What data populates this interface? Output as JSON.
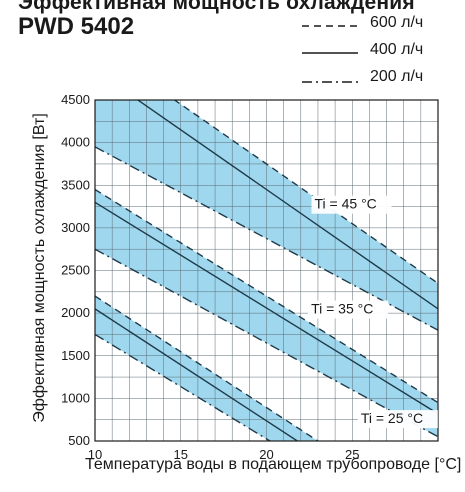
{
  "header": {
    "title": "Эффективная мощность охлаждения",
    "model": "PWD 5402"
  },
  "legend": [
    {
      "label": "600 л/ч",
      "style": "dashed"
    },
    {
      "label": "400 л/ч",
      "style": "solid"
    },
    {
      "label": "200 л/ч",
      "style": "dashdot"
    }
  ],
  "chart_data": {
    "type": "area",
    "xlabel": "Температура воды в подающем трубопроводе [°C]",
    "ylabel": "Эффективная мощность охлаждения [Вт]",
    "xlim": [
      10,
      30
    ],
    "ylim": [
      500,
      4500
    ],
    "xticks": [
      "10",
      "15",
      "20",
      "25"
    ],
    "yticks": [
      "500",
      "1000",
      "1500",
      "2000",
      "2500",
      "3000",
      "3500",
      "4000",
      "4500"
    ],
    "grid": true,
    "band_color": "#9fd8ee",
    "series": [
      {
        "name": "Ti = 45 °C",
        "lines": [
          {
            "style": "dashed",
            "x": [
              10,
              30
            ],
            "y": [
              5150,
              2350
            ]
          },
          {
            "style": "solid",
            "x": [
              10,
              30
            ],
            "y": [
              4850,
              2050
            ]
          },
          {
            "style": "dashdot",
            "x": [
              10,
              30
            ],
            "y": [
              3950,
              1800
            ]
          }
        ]
      },
      {
        "name": "Ti = 35 °C",
        "lines": [
          {
            "style": "dashed",
            "x": [
              10,
              30
            ],
            "y": [
              3450,
              950
            ]
          },
          {
            "style": "solid",
            "x": [
              10,
              30
            ],
            "y": [
              3300,
              820
            ]
          },
          {
            "style": "dashdot",
            "x": [
              10,
              30
            ],
            "y": [
              2750,
              550
            ]
          }
        ]
      },
      {
        "name": "Ti = 25 °C",
        "lines": [
          {
            "style": "dashed",
            "x": [
              10,
              23
            ],
            "y": [
              2200,
              500
            ]
          },
          {
            "style": "solid",
            "x": [
              10,
              21.8
            ],
            "y": [
              2050,
              500
            ]
          },
          {
            "style": "dashdot",
            "x": [
              10,
              20.2
            ],
            "y": [
              1750,
              500
            ]
          }
        ]
      }
    ],
    "annotations": [
      "Ti = 45 °C",
      "Ti = 35 °C",
      "Ti = 25 °C"
    ]
  },
  "colors": {
    "band": "#9fd8ee",
    "line": "#1f3a4a",
    "grid": "#5a6a72"
  }
}
